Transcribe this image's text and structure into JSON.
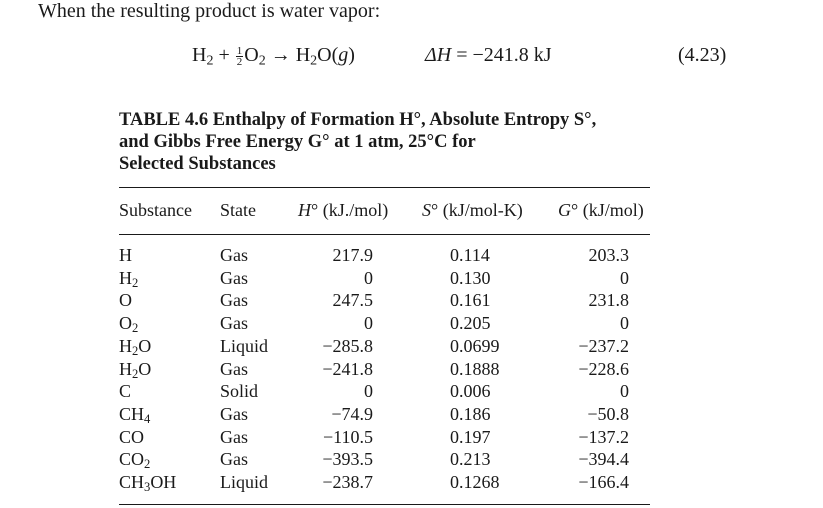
{
  "intro": "When the resulting product is water vapor:",
  "equation": {
    "h2": "H",
    "h2_sub": "2",
    "plus": "+",
    "half_num": "1",
    "half_den": "2",
    "o2": "O",
    "o2_sub": "2",
    "arrow": "→",
    "water": "H",
    "water_sub": "2",
    "water_rest": "O(",
    "phase": "g",
    "close": ")",
    "dh_label": "ΔH",
    "dh_value": "= −241.8 kJ",
    "number": "(4.23)"
  },
  "table": {
    "caption_line1": "TABLE 4.6   Enthalpy of Formation H°, Absolute Entropy S°,",
    "caption_line2": "and Gibbs Free Energy G° at 1 atm, 25°C for",
    "caption_line3": "Selected Substances",
    "headers": {
      "substance": "Substance",
      "state": "State",
      "h_sym": "H",
      "h_unit": "° (kJ./mol)",
      "s_sym": "S",
      "s_unit": "° (kJ/mol-K)",
      "g_sym": "G",
      "g_unit": "° (kJ/mol)"
    },
    "rows": [
      {
        "base": "H",
        "sub": "",
        "rest": "",
        "state": "Gas",
        "h": "217.9",
        "s": "0.114",
        "g": "203.3"
      },
      {
        "base": "H",
        "sub": "2",
        "rest": "",
        "state": "Gas",
        "h": "0",
        "s": "0.130",
        "g": "0"
      },
      {
        "base": "O",
        "sub": "",
        "rest": "",
        "state": "Gas",
        "h": "247.5",
        "s": "0.161",
        "g": "231.8"
      },
      {
        "base": "O",
        "sub": "2",
        "rest": "",
        "state": "Gas",
        "h": "0",
        "s": "0.205",
        "g": "0"
      },
      {
        "base": "H",
        "sub": "2",
        "rest": "O",
        "state": "Liquid",
        "h": "−285.8",
        "s": "0.0699",
        "g": "−237.2"
      },
      {
        "base": "H",
        "sub": "2",
        "rest": "O",
        "state": "Gas",
        "h": "−241.8",
        "s": "0.1888",
        "g": "−228.6"
      },
      {
        "base": "C",
        "sub": "",
        "rest": "",
        "state": "Solid",
        "h": "0",
        "s": "0.006",
        "g": "0"
      },
      {
        "base": "CH",
        "sub": "4",
        "rest": "",
        "state": "Gas",
        "h": "−74.9",
        "s": "0.186",
        "g": "−50.8"
      },
      {
        "base": "CO",
        "sub": "",
        "rest": "",
        "state": "Gas",
        "h": "−110.5",
        "s": "0.197",
        "g": "−137.2"
      },
      {
        "base": "CO",
        "sub": "2",
        "rest": "",
        "state": "Gas",
        "h": "−393.5",
        "s": "0.213",
        "g": "−394.4"
      },
      {
        "base": "CH",
        "sub": "3",
        "rest": "OH",
        "state": "Liquid",
        "h": "−238.7",
        "s": "0.1268",
        "g": "−166.4"
      }
    ]
  }
}
